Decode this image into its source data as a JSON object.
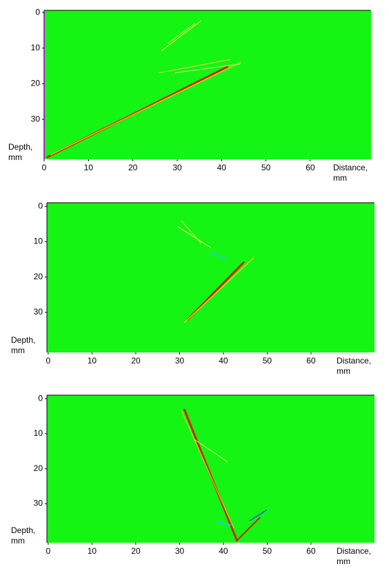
{
  "chart_data": [
    {
      "type": "image",
      "xlabel": [
        "Distance,",
        "mm"
      ],
      "ylabel": [
        "Depth,",
        "mm"
      ],
      "xlim": [
        0,
        73.7
      ],
      "ylim": [
        -0.6,
        41.2
      ],
      "xticks": [
        0,
        10,
        20,
        30,
        40,
        50,
        60
      ],
      "yticks": [
        0,
        10,
        20,
        30
      ],
      "background": "#14f514"
    },
    {
      "type": "image",
      "xlabel": [
        "Distance,",
        "mm"
      ],
      "ylabel": [
        "Depth,",
        "mm"
      ],
      "xlim": [
        -0.3,
        74.5
      ],
      "ylim": [
        -1,
        41.3
      ],
      "xticks": [
        0,
        10,
        20,
        30,
        40,
        50,
        60
      ],
      "yticks": [
        0,
        10,
        20,
        30
      ],
      "background": "#14f514"
    },
    {
      "type": "image",
      "xlabel": [
        "Distance,",
        "mm"
      ],
      "ylabel": [
        "Depth,",
        "mm"
      ],
      "xlim": [
        -0.3,
        74.5
      ],
      "ylim": [
        -1,
        41.1
      ],
      "xticks": [
        0,
        10,
        20,
        30,
        40,
        50,
        60
      ],
      "yticks": [
        0,
        10,
        20,
        30
      ],
      "background": "#14f514"
    }
  ]
}
